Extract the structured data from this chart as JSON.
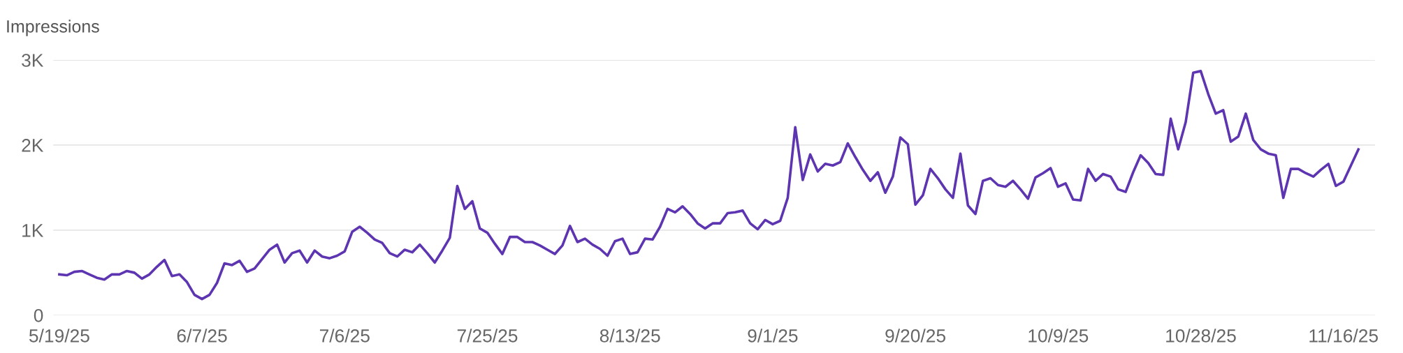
{
  "chart_data": {
    "type": "line",
    "ylabel": "Impressions",
    "categories": [
      "5/19/25",
      null,
      null,
      null,
      null,
      null,
      null,
      null,
      null,
      null,
      null,
      null,
      null,
      null,
      null,
      null,
      null,
      null,
      null,
      "6/7/25",
      null,
      null,
      null,
      null,
      null,
      null,
      null,
      null,
      null,
      null,
      null,
      null,
      null,
      null,
      null,
      null,
      null,
      null,
      "7/6/25",
      null,
      null,
      null,
      null,
      null,
      null,
      null,
      null,
      null,
      null,
      null,
      null,
      null,
      null,
      null,
      null,
      null,
      null,
      "7/25/25",
      null,
      null,
      null,
      null,
      null,
      null,
      null,
      null,
      null,
      null,
      null,
      null,
      null,
      null,
      null,
      null,
      null,
      null,
      "8/13/25",
      null,
      null,
      null,
      null,
      null,
      null,
      null,
      null,
      null,
      null,
      null,
      null,
      null,
      null,
      null,
      null,
      null,
      null,
      "9/1/25",
      null,
      null,
      null,
      null,
      null,
      null,
      null,
      null,
      null,
      null,
      null,
      null,
      null,
      null,
      null,
      null,
      null,
      null,
      "9/20/25",
      null,
      null,
      null,
      null,
      null,
      null,
      null,
      null,
      null,
      null,
      null,
      null,
      null,
      null,
      null,
      null,
      null,
      null,
      "10/9/25",
      null,
      null,
      null,
      null,
      null,
      null,
      null,
      null,
      null,
      null,
      null,
      null,
      null,
      null,
      null,
      null,
      null,
      null,
      "10/28/25",
      null,
      null,
      null,
      null,
      null,
      null,
      null,
      null,
      null,
      null,
      null,
      null,
      null,
      null,
      null,
      null,
      null,
      null,
      "11/16/25",
      null,
      null
    ],
    "series": [
      {
        "color": "#5e35b1",
        "values": [
          480,
          470,
          510,
          520,
          480,
          440,
          420,
          480,
          480,
          520,
          500,
          430,
          480,
          570,
          650,
          460,
          480,
          390,
          240,
          190,
          240,
          380,
          610,
          590,
          640,
          510,
          550,
          660,
          770,
          830,
          620,
          730,
          760,
          620,
          760,
          690,
          670,
          700,
          750,
          980,
          1040,
          970,
          890,
          850,
          730,
          690,
          770,
          740,
          830,
          730,
          620,
          760,
          910,
          1520,
          1250,
          1340,
          1020,
          970,
          840,
          720,
          920,
          920,
          860,
          860,
          820,
          770,
          720,
          820,
          1050,
          860,
          900,
          830,
          780,
          700,
          870,
          900,
          720,
          740,
          900,
          890,
          1040,
          1250,
          1210,
          1280,
          1190,
          1080,
          1020,
          1080,
          1080,
          1200,
          1210,
          1230,
          1080,
          1010,
          1120,
          1070,
          1110,
          1380,
          2210,
          1590,
          1890,
          1690,
          1780,
          1760,
          1800,
          2020,
          1860,
          1710,
          1580,
          1680,
          1440,
          1630,
          2090,
          2010,
          1300,
          1410,
          1720,
          1610,
          1480,
          1380,
          1900,
          1290,
          1190,
          1580,
          1610,
          1530,
          1510,
          1580,
          1480,
          1370,
          1620,
          1670,
          1730,
          1510,
          1550,
          1360,
          1350,
          1720,
          1580,
          1660,
          1630,
          1480,
          1450,
          1680,
          1880,
          1790,
          1660,
          1650,
          2310,
          1950,
          2270,
          2850,
          2870,
          2600,
          2370,
          2410,
          2040,
          2100,
          2370,
          2060,
          1950,
          1900,
          1880,
          1380,
          1720,
          1720,
          1670,
          1630,
          1710,
          1780,
          1520,
          1570,
          1760,
          1950
        ]
      }
    ],
    "ylim": [
      0,
      3000
    ],
    "yticks": [
      0,
      {
        "value": 1000,
        "label": "1K"
      },
      {
        "value": 2000,
        "label": "2K"
      },
      {
        "value": 3000,
        "label": "3K"
      }
    ],
    "grid": "y",
    "marker": "none",
    "line_style": "solid"
  }
}
